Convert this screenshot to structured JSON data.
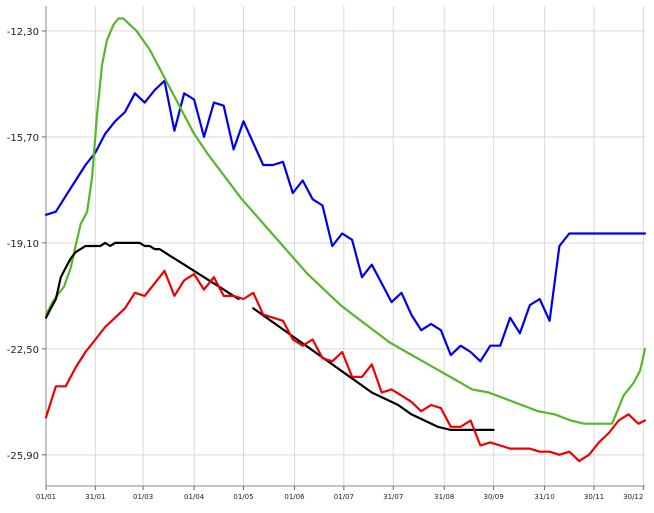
{
  "chart_data": {
    "type": "line",
    "title": "",
    "xlabel": "",
    "ylabel": "",
    "x_ticks": [
      "01/01",
      "31/01",
      "01/03",
      "01/04",
      "01/05",
      "01/06",
      "01/07",
      "31/07",
      "31/08",
      "30/09",
      "31/10",
      "30/11",
      "30/12"
    ],
    "x_tick_days": [
      1,
      31,
      60,
      91,
      121,
      152,
      182,
      212,
      243,
      273,
      304,
      334,
      364
    ],
    "xlim": [
      1,
      365
    ],
    "y_ticks": [
      "-12,30",
      "-15,70",
      "-19,10",
      "-22,50",
      "-25,90"
    ],
    "y_tick_values": [
      -12.3,
      -15.7,
      -19.1,
      -22.5,
      -25.9
    ],
    "ylim": [
      -26.9,
      -11.5
    ],
    "grid": true,
    "legend": "none",
    "series": [
      {
        "color": "#0000ee",
        "x": [
          1,
          7,
          13,
          19,
          25,
          31,
          37,
          43,
          49,
          55,
          61,
          67,
          73,
          79,
          85,
          91,
          97,
          103,
          109,
          115,
          121,
          127,
          133,
          139,
          145,
          151,
          157,
          163,
          169,
          175,
          181,
          187,
          193,
          199,
          205,
          211,
          217,
          223,
          229,
          235,
          241,
          247,
          253,
          259,
          265,
          271,
          277,
          283,
          289,
          295,
          301,
          307,
          313,
          319,
          325,
          331,
          337,
          343,
          349,
          355,
          361,
          365
        ],
        "y": [
          -18.2,
          -18.1,
          -17.6,
          -17.1,
          -16.6,
          -16.2,
          -15.6,
          -15.2,
          -14.9,
          -14.3,
          -14.6,
          -14.2,
          -13.9,
          -15.5,
          -14.3,
          -14.5,
          -15.7,
          -14.6,
          -14.7,
          -16.1,
          -15.2,
          -15.9,
          -16.6,
          -16.6,
          -16.5,
          -17.5,
          -17.1,
          -17.7,
          -17.9,
          -19.2,
          -18.8,
          -19.0,
          -20.2,
          -19.8,
          -20.4,
          -21.0,
          -20.7,
          -21.4,
          -21.9,
          -21.7,
          -21.9,
          -22.7,
          -22.4,
          -22.6,
          -22.9,
          -22.4,
          -22.4,
          -21.5,
          -22.0,
          -21.1,
          -20.9,
          -21.6,
          -19.2,
          -18.8,
          -18.8,
          -18.8,
          -18.8,
          -18.8,
          -18.8,
          -18.8,
          -18.8,
          -18.8
        ]
      },
      {
        "color": "#55b82a",
        "x": [
          1,
          5,
          9,
          12,
          16,
          19,
          22,
          26,
          29,
          32,
          35,
          38,
          42,
          45,
          48,
          52,
          56,
          60,
          64,
          68,
          73,
          79,
          85,
          91,
          100,
          110,
          120,
          130,
          140,
          150,
          160,
          170,
          180,
          190,
          200,
          210,
          220,
          230,
          240,
          250,
          260,
          270,
          280,
          290,
          300,
          310,
          320,
          328,
          333,
          336,
          340,
          345,
          352,
          358,
          362,
          365
        ],
        "y": [
          -21.4,
          -21.0,
          -20.7,
          -20.5,
          -19.9,
          -19.2,
          -18.5,
          -18.1,
          -17.0,
          -15.0,
          -13.4,
          -12.6,
          -12.1,
          -11.9,
          -11.9,
          -12.1,
          -12.3,
          -12.6,
          -12.9,
          -13.3,
          -13.8,
          -14.4,
          -15.0,
          -15.6,
          -16.3,
          -17.0,
          -17.7,
          -18.3,
          -18.9,
          -19.5,
          -20.1,
          -20.6,
          -21.1,
          -21.5,
          -21.9,
          -22.3,
          -22.6,
          -22.9,
          -23.2,
          -23.5,
          -23.8,
          -23.9,
          -24.1,
          -24.3,
          -24.5,
          -24.6,
          -24.8,
          -24.9,
          -24.9,
          -24.9,
          -24.9,
          -24.9,
          -24.0,
          -23.6,
          -23.2,
          -22.5
        ]
      },
      {
        "color": "#000000",
        "x": [
          1,
          4,
          7,
          10,
          13,
          16,
          19,
          22,
          25,
          28,
          31,
          34,
          37,
          40,
          43,
          46,
          49,
          52,
          55,
          58,
          61,
          64,
          67,
          70,
          73,
          76,
          79,
          82,
          85,
          88,
          91,
          94,
          97,
          100,
          103,
          106,
          109,
          112,
          115,
          118,
          127,
          135,
          143,
          151,
          159,
          167,
          175,
          183,
          191,
          199,
          207,
          215,
          223,
          231,
          239,
          247,
          255,
          263,
          271,
          273
        ],
        "y": [
          -21.5,
          -21.2,
          -20.9,
          -20.2,
          -19.9,
          -19.6,
          -19.4,
          -19.3,
          -19.2,
          -19.2,
          -19.2,
          -19.2,
          -19.1,
          -19.2,
          -19.1,
          -19.1,
          -19.1,
          -19.1,
          -19.1,
          -19.1,
          -19.2,
          -19.2,
          -19.3,
          -19.3,
          -19.4,
          -19.5,
          -19.6,
          -19.7,
          -19.8,
          -19.9,
          -20.0,
          -20.1,
          -20.2,
          -20.3,
          -20.4,
          -20.5,
          -20.6,
          -20.7,
          -20.8,
          -20.9,
          -21.2,
          -21.5,
          -21.8,
          -22.1,
          -22.4,
          -22.7,
          -23.0,
          -23.3,
          -23.6,
          -23.9,
          -24.1,
          -24.3,
          -24.6,
          -24.8,
          -25.0,
          -25.1,
          -25.1,
          -25.1,
          -25.1,
          -25.1
        ],
        "gaps_after": [
          118
        ]
      },
      {
        "color": "#ee0000",
        "x": [
          1,
          7,
          13,
          19,
          25,
          31,
          37,
          43,
          49,
          55,
          61,
          67,
          73,
          79,
          85,
          91,
          97,
          103,
          109,
          115,
          121,
          127,
          133,
          139,
          145,
          151,
          157,
          163,
          169,
          175,
          181,
          187,
          193,
          199,
          205,
          211,
          217,
          223,
          229,
          235,
          241,
          247,
          253,
          259,
          265,
          271,
          277,
          283,
          289,
          295,
          301,
          307,
          313,
          319,
          325,
          331,
          337,
          343,
          349,
          355,
          361,
          365
        ],
        "y": [
          -24.7,
          -23.7,
          -23.7,
          -23.1,
          -22.6,
          -22.2,
          -21.8,
          -21.5,
          -21.2,
          -20.7,
          -20.8,
          -20.4,
          -20.0,
          -20.8,
          -20.3,
          -20.1,
          -20.6,
          -20.2,
          -20.8,
          -20.8,
          -20.9,
          -20.7,
          -21.4,
          -21.5,
          -21.6,
          -22.2,
          -22.4,
          -22.2,
          -22.8,
          -22.9,
          -22.6,
          -23.4,
          -23.4,
          -23.0,
          -23.9,
          -23.8,
          -24.0,
          -24.2,
          -24.5,
          -24.3,
          -24.4,
          -25.0,
          -25.0,
          -24.8,
          -25.6,
          -25.5,
          -25.6,
          -25.7,
          -25.7,
          -25.7,
          -25.8,
          -25.8,
          -25.9,
          -25.8,
          -26.1,
          -25.9,
          -25.5,
          -25.2,
          -24.8,
          -24.6,
          -24.9,
          -24.8
        ]
      }
    ]
  }
}
